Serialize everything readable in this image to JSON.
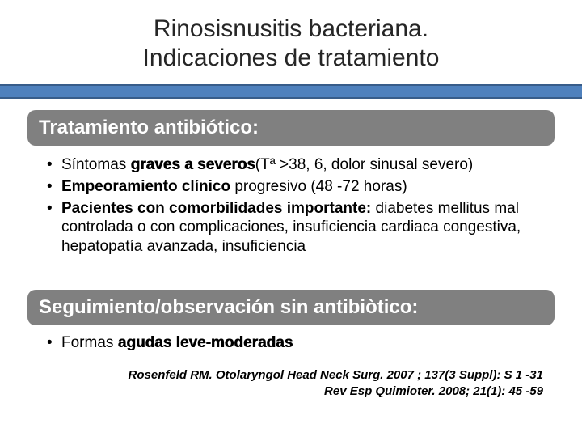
{
  "title": {
    "line1": "Rinosisnusitis bacteriana.",
    "line2": "Indicaciones de tratamiento"
  },
  "section1": {
    "header": "Tratamiento antibiótico:",
    "b1_pre": "Síntomas ",
    "b1_strong": "graves  a severos",
    "b1_post": "(Tª >38, 6, dolor sinusal severo)",
    "b2_strong": "Empeoramiento clínico",
    "b2_post": " progresivo (48 -72 horas)",
    "b3_strong": "Pacientes con comorbilidades importante:",
    "b3_post": " diabetes mellitus mal controlada o con complicaciones, insuficiencia cardiaca congestiva, hepatopatía avanzada, insuficiencia"
  },
  "section2": {
    "header": "Seguimiento/observación sin antibiòtico:",
    "b1_pre": "Formas ",
    "b1_strong": "agudas leve-moderadas"
  },
  "refs": {
    "r1": "Rosenfeld RM. Otolaryngol Head Neck Surg. 2007 ; 137(3 Suppl): S 1 -31",
    "r2": "Rev Esp Quimioter. 2008; 21(1): 45 -59"
  },
  "colors": {
    "accent": "#4f81bd",
    "accent_border": "#385d8a",
    "pill_bg": "#808080",
    "text": "#000000",
    "title_text": "#262626"
  }
}
